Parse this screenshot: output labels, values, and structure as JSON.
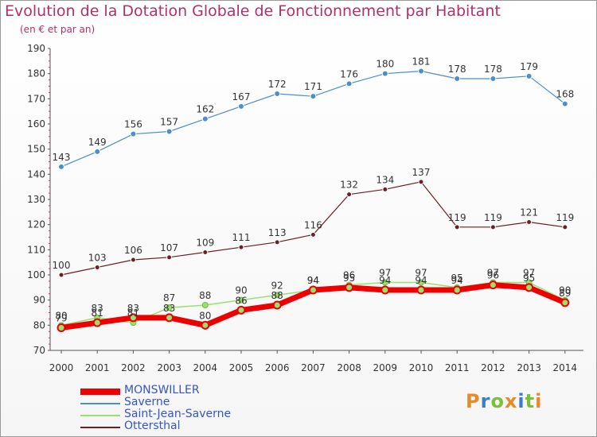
{
  "title": "Evolution de la Dotation Globale de Fonctionnement par Habitant",
  "subtitle": "(en € et par an)",
  "logo": "Proxiti",
  "chart_data": {
    "type": "line",
    "x": [
      "2000",
      "2001",
      "2002",
      "2003",
      "2004",
      "2005",
      "2006",
      "2007",
      "2008",
      "2009",
      "2010",
      "2011",
      "2012",
      "2013",
      "2014"
    ],
    "ylim": [
      70,
      190
    ],
    "yticks": [
      70,
      80,
      90,
      100,
      110,
      120,
      130,
      140,
      150,
      160,
      170,
      180,
      190
    ],
    "grid": false,
    "series": [
      {
        "name": "MONSWILLER",
        "color": "#ee0000",
        "values": [
          79,
          81,
          83,
          83,
          80,
          86,
          88,
          94,
          95,
          94,
          94,
          94,
          96,
          95,
          89
        ]
      },
      {
        "name": "Saverne",
        "color": "#4a8fcc",
        "values": [
          143,
          149,
          156,
          157,
          162,
          167,
          172,
          171,
          176,
          180,
          181,
          178,
          178,
          179,
          168
        ]
      },
      {
        "name": "Saint-Jean-Saverne",
        "color": "#99e070",
        "values": [
          80,
          83,
          81,
          87,
          88,
          90,
          92,
          94,
          96,
          97,
          97,
          95,
          97,
          97,
          90
        ]
      },
      {
        "name": "Ottersthal",
        "color": "#6b1f25",
        "values": [
          100,
          103,
          106,
          107,
          109,
          111,
          113,
          116,
          132,
          134,
          137,
          119,
          119,
          121,
          119
        ]
      }
    ]
  }
}
